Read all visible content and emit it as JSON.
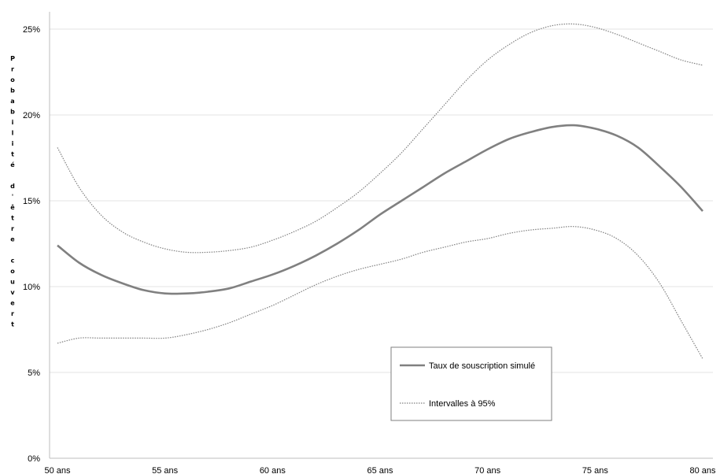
{
  "chart_data": {
    "type": "line",
    "title": "",
    "xlabel": "",
    "ylabel": "Probabilité d'être couvert",
    "ylabel_lines": [
      "Probabilité",
      "d'être",
      "couvert"
    ],
    "x_ticks": [
      50,
      55,
      60,
      65,
      70,
      75,
      80
    ],
    "x_tick_labels": [
      "50 ans",
      "55 ans",
      "60 ans",
      "65 ans",
      "70 ans",
      "75 ans",
      "80 ans"
    ],
    "y_ticks": [
      0,
      5,
      10,
      15,
      20,
      25
    ],
    "y_tick_labels": [
      "0%",
      "5%",
      "10%",
      "15%",
      "20%",
      "25%"
    ],
    "xlim": [
      50,
      80.5
    ],
    "ylim": [
      0,
      25
    ],
    "grid": "horizontal",
    "legend": {
      "placement": "bottom-center",
      "entries": [
        "Taux de souscription simulé",
        "Intervalles à 95%"
      ]
    },
    "x": [
      50,
      51,
      52,
      53,
      54,
      55,
      56,
      57,
      58,
      59,
      60,
      61,
      62,
      63,
      64,
      65,
      66,
      67,
      68,
      69,
      70,
      71,
      72,
      73,
      74,
      75,
      76,
      77,
      78,
      79,
      80
    ],
    "series": [
      {
        "name": "Taux de souscription simulé",
        "style": "solid",
        "color": "#808080",
        "values": [
          12.4,
          11.4,
          10.7,
          10.2,
          9.8,
          9.6,
          9.6,
          9.7,
          9.9,
          10.3,
          10.7,
          11.2,
          11.8,
          12.5,
          13.3,
          14.2,
          15.0,
          15.8,
          16.6,
          17.3,
          18.0,
          18.6,
          19.0,
          19.3,
          19.4,
          19.2,
          18.8,
          18.1,
          17.0,
          15.8,
          14.4
        ]
      },
      {
        "name": "Intervalles à 95%",
        "style": "dotted",
        "color": "#808080",
        "values": [
          18.1,
          15.8,
          14.2,
          13.2,
          12.6,
          12.2,
          12.0,
          12.0,
          12.1,
          12.3,
          12.7,
          13.2,
          13.8,
          14.6,
          15.5,
          16.6,
          17.8,
          19.2,
          20.6,
          22.0,
          23.2,
          24.1,
          24.8,
          25.2,
          25.3,
          25.1,
          24.7,
          24.2,
          23.7,
          23.2,
          22.9
        ]
      },
      {
        "name": "Intervalles à 95%",
        "style": "dotted",
        "color": "#808080",
        "values": [
          6.7,
          7.0,
          7.0,
          7.0,
          7.0,
          7.0,
          7.2,
          7.5,
          7.9,
          8.4,
          8.9,
          9.5,
          10.1,
          10.6,
          11.0,
          11.3,
          11.6,
          12.0,
          12.3,
          12.6,
          12.8,
          13.1,
          13.3,
          13.4,
          13.5,
          13.3,
          12.8,
          11.8,
          10.2,
          8.0,
          5.8
        ]
      }
    ]
  }
}
